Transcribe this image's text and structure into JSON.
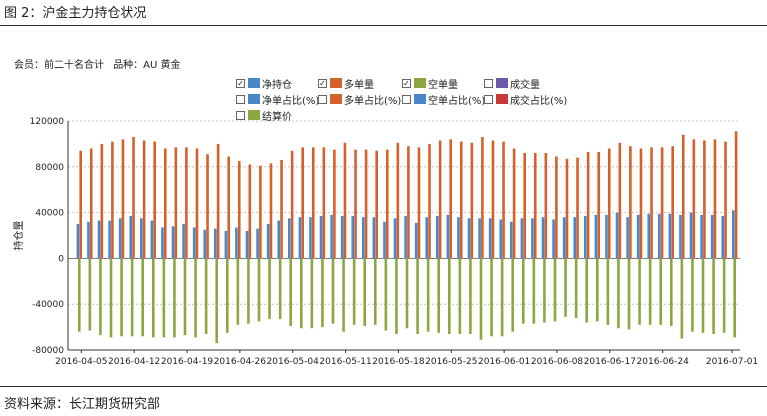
{
  "page": {
    "figure_title": "图 2：沪金主力持仓状况",
    "source": "资料来源：长江期货研究部"
  },
  "meta": {
    "member_label": "会员：前二十名合计",
    "product_label": "品种：AU  黄金"
  },
  "legend": [
    {
      "label": "净持仓",
      "checked": true,
      "color": "#4a86c8"
    },
    {
      "label": "多单量",
      "checked": true,
      "color": "#d4602a"
    },
    {
      "label": "空单量",
      "checked": true,
      "color": "#8aa83f"
    },
    {
      "label": "成交量",
      "checked": false,
      "color": "#6a5aa8"
    },
    {
      "label": "净单占比(%)",
      "checked": false,
      "color": "#4a86c8"
    },
    {
      "label": "多单占比(%)",
      "checked": false,
      "color": "#d4602a"
    },
    {
      "label": "空单占比(%)",
      "checked": false,
      "color": "#4a86c8"
    },
    {
      "label": "成交占比(%)",
      "checked": false,
      "color": "#c8373a"
    },
    {
      "label": "结算价",
      "checked": false,
      "color": "#8aa83f"
    }
  ],
  "chart_data": {
    "type": "bar",
    "ylabel": "持仓量",
    "ylim": [
      -80000,
      120000
    ],
    "yticks": [
      -80000,
      -40000,
      0,
      40000,
      80000,
      120000
    ],
    "xtick_labels": [
      "2016-04-05",
      "2016-04-12",
      "2016-04-19",
      "2016-04-26",
      "2016-05-04",
      "2016-05-11",
      "2016-05-18",
      "2016-05-25",
      "2016-06-01",
      "2016-06-08",
      "2016-06-17",
      "2016-06-24",
      "2016-07-01"
    ],
    "grid": "horizontal dotted",
    "colors": {
      "net": "#4a86c8",
      "long": "#d4602a",
      "short": "#8aa83f"
    },
    "series": [
      {
        "name": "多单量",
        "values": [
          94000,
          96000,
          100000,
          102000,
          104000,
          106000,
          103000,
          102000,
          96000,
          97000,
          97000,
          96000,
          91000,
          100000,
          89000,
          85000,
          82000,
          81000,
          83000,
          86000,
          94000,
          97000,
          97000,
          97000,
          95000,
          101000,
          95000,
          95000,
          94000,
          95000,
          101000,
          98000,
          97000,
          100000,
          103000,
          104000,
          102000,
          101000,
          106000,
          103000,
          102000,
          96000,
          92000,
          92000,
          92000,
          89000,
          87000,
          88000,
          93000,
          93000,
          96000,
          101000,
          98000,
          96000,
          97000,
          97000,
          98000,
          108000,
          104000,
          103000,
          104000,
          102000,
          111000
        ]
      },
      {
        "name": "净持仓",
        "values": [
          30000,
          32000,
          33000,
          33000,
          35000,
          37000,
          35000,
          33000,
          27000,
          28000,
          30000,
          27000,
          25000,
          26000,
          24000,
          27000,
          24000,
          26000,
          30000,
          33000,
          35000,
          36000,
          36000,
          37000,
          38000,
          37000,
          37000,
          36000,
          36000,
          32000,
          35000,
          37000,
          31000,
          36000,
          37000,
          38000,
          36000,
          35000,
          35000,
          35000,
          34000,
          32000,
          35000,
          35000,
          36000,
          34000,
          36000,
          36000,
          37000,
          38000,
          38000,
          40000,
          36000,
          38000,
          39000,
          39000,
          39000,
          38000,
          40000,
          38000,
          38000,
          37000,
          42000
        ]
      },
      {
        "name": "空单量",
        "values": [
          -64000,
          -63000,
          -67000,
          -69000,
          -68000,
          -68000,
          -68000,
          -69000,
          -69000,
          -69000,
          -67000,
          -69000,
          -66000,
          -74000,
          -65000,
          -58000,
          -57000,
          -55000,
          -53000,
          -53000,
          -59000,
          -61000,
          -61000,
          -60000,
          -57000,
          -64000,
          -58000,
          -59000,
          -58000,
          -63000,
          -66000,
          -61000,
          -66000,
          -64000,
          -65000,
          -66000,
          -66000,
          -66000,
          -71000,
          -68000,
          -68000,
          -64000,
          -57000,
          -57000,
          -56000,
          -55000,
          -51000,
          -52000,
          -56000,
          -55000,
          -58000,
          -61000,
          -62000,
          -58000,
          -58000,
          -58000,
          -59000,
          -70000,
          -64000,
          -65000,
          -66000,
          -65000,
          -69000
        ]
      }
    ]
  }
}
